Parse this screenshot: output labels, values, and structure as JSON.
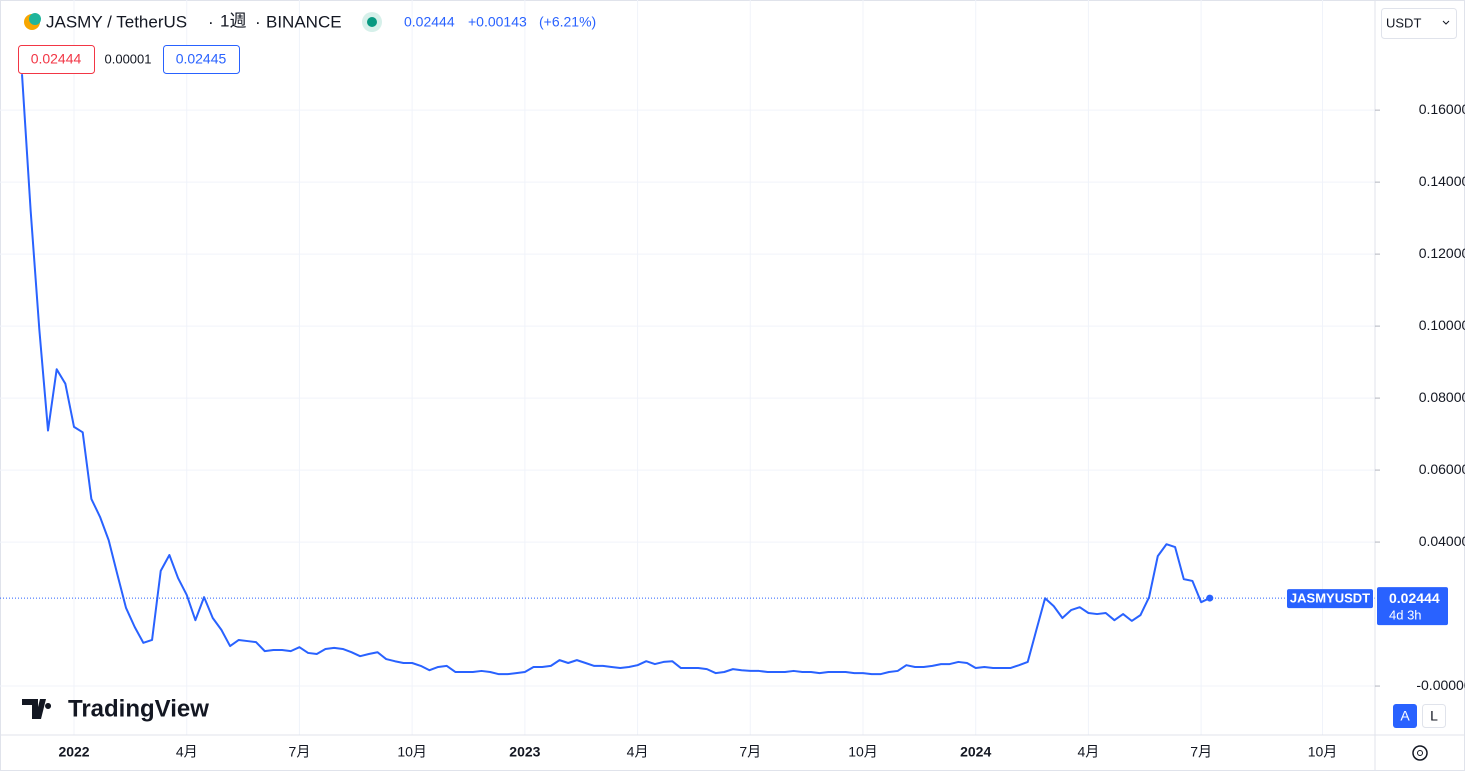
{
  "header": {
    "symbol": "JASMY / TetherUS",
    "interval": "1週",
    "exchange": "BINANCE",
    "price": "0.02444",
    "change": "+0.00143",
    "change_pct": "(+6.21%)",
    "bid": "0.02444",
    "spread": "0.00001",
    "ask": "0.02445",
    "currency": "USDT",
    "countdown": "4d 3h",
    "logo": "TradingView",
    "auto_button": "A",
    "log_button": "L"
  },
  "chart_data": {
    "type": "line",
    "grid": true,
    "categories": [
      null,
      null,
      null,
      null,
      null,
      null,
      "2022",
      null,
      null,
      null,
      null,
      null,
      null,
      null,
      null,
      null,
      null,
      null,
      null,
      "4月",
      null,
      null,
      null,
      null,
      null,
      null,
      null,
      null,
      null,
      null,
      null,
      null,
      "7月",
      null,
      null,
      null,
      null,
      null,
      null,
      null,
      null,
      null,
      null,
      null,
      null,
      "10月",
      null,
      null,
      null,
      null,
      null,
      null,
      null,
      null,
      null,
      null,
      null,
      null,
      "2023",
      null,
      null,
      null,
      null,
      null,
      null,
      null,
      null,
      null,
      null,
      null,
      null,
      "4月",
      null,
      null,
      null,
      null,
      null,
      null,
      null,
      null,
      null,
      null,
      null,
      null,
      "7月",
      null,
      null,
      null,
      null,
      null,
      null,
      null,
      null,
      null,
      null,
      null,
      null,
      "10月",
      null,
      null,
      null,
      null,
      null,
      null,
      null,
      null,
      null,
      null,
      null,
      null,
      "2024",
      null,
      null,
      null,
      null,
      null,
      null,
      null,
      null,
      null,
      null,
      null,
      null,
      "4月",
      null,
      null,
      null,
      null,
      null,
      null,
      null,
      null,
      null,
      null,
      null,
      null,
      "7月",
      null,
      null,
      null,
      null,
      null,
      null,
      null,
      null,
      null,
      null,
      null,
      null,
      null,
      "10月",
      null,
      null,
      null,
      null,
      null
    ],
    "series": [
      {
        "name": "JASMYUSDT",
        "color": "#2962ff",
        "values": [
          0.17,
          0.132,
          0.099,
          0.071,
          0.088,
          0.084,
          0.072,
          0.0705,
          0.052,
          0.047,
          0.0405,
          0.031,
          0.0217,
          0.0164,
          0.012,
          0.0128,
          0.032,
          0.0364,
          0.03,
          0.0253,
          0.0183,
          0.0247,
          0.0189,
          0.0156,
          0.0111,
          0.0128,
          0.0125,
          0.0122,
          0.0097,
          0.01,
          0.01,
          0.0097,
          0.0108,
          0.0092,
          0.0089,
          0.0103,
          0.0106,
          0.0103,
          0.0094,
          0.0083,
          0.0089,
          0.0094,
          0.0075,
          0.0069,
          0.0064,
          0.0064,
          0.0056,
          0.0044,
          0.0053,
          0.0056,
          0.0039,
          0.0039,
          0.0039,
          0.0042,
          0.0039,
          0.0033,
          0.0033,
          0.0036,
          0.0039,
          0.0053,
          0.0053,
          0.0056,
          0.0072,
          0.0064,
          0.0072,
          0.0064,
          0.0056,
          0.0056,
          0.0053,
          0.005,
          0.0053,
          0.0058,
          0.0069,
          0.0061,
          0.0067,
          0.0069,
          0.005,
          0.005,
          0.005,
          0.0047,
          0.0036,
          0.0039,
          0.0047,
          0.0044,
          0.0042,
          0.0042,
          0.0039,
          0.0039,
          0.0039,
          0.0042,
          0.0039,
          0.0039,
          0.0036,
          0.0039,
          0.0039,
          0.0039,
          0.0036,
          0.0036,
          0.0033,
          0.0033,
          0.0039,
          0.0042,
          0.0058,
          0.0053,
          0.0053,
          0.0056,
          0.0061,
          0.0061,
          0.0067,
          0.0064,
          0.005,
          0.0053,
          0.005,
          0.005,
          0.005,
          0.0058,
          0.0067,
          0.0156,
          0.0244,
          0.0222,
          0.0189,
          0.0211,
          0.0219,
          0.0203,
          0.02,
          0.0203,
          0.0183,
          0.02,
          0.0181,
          0.0197,
          0.0247,
          0.0361,
          0.0394,
          0.0386,
          0.0297,
          0.0292,
          0.0233,
          0.02444,
          null,
          null,
          null,
          null,
          null,
          null,
          null,
          null,
          null,
          null,
          null,
          null,
          null,
          null,
          null,
          null,
          null,
          null
        ]
      }
    ],
    "ylim": [
      -0.0136,
      0.1906
    ],
    "yticks": [
      {
        "value": 0,
        "label": "-0.00000"
      },
      {
        "value": 0.04,
        "label": "0.04000"
      },
      {
        "value": 0.06,
        "label": "0.06000"
      },
      {
        "value": 0.08,
        "label": "0.08000"
      },
      {
        "value": 0.1,
        "label": "0.10000"
      },
      {
        "value": 0.12,
        "label": "0.12000"
      },
      {
        "value": 0.14,
        "label": "0.14000"
      },
      {
        "value": 0.16,
        "label": "0.16000"
      }
    ]
  }
}
